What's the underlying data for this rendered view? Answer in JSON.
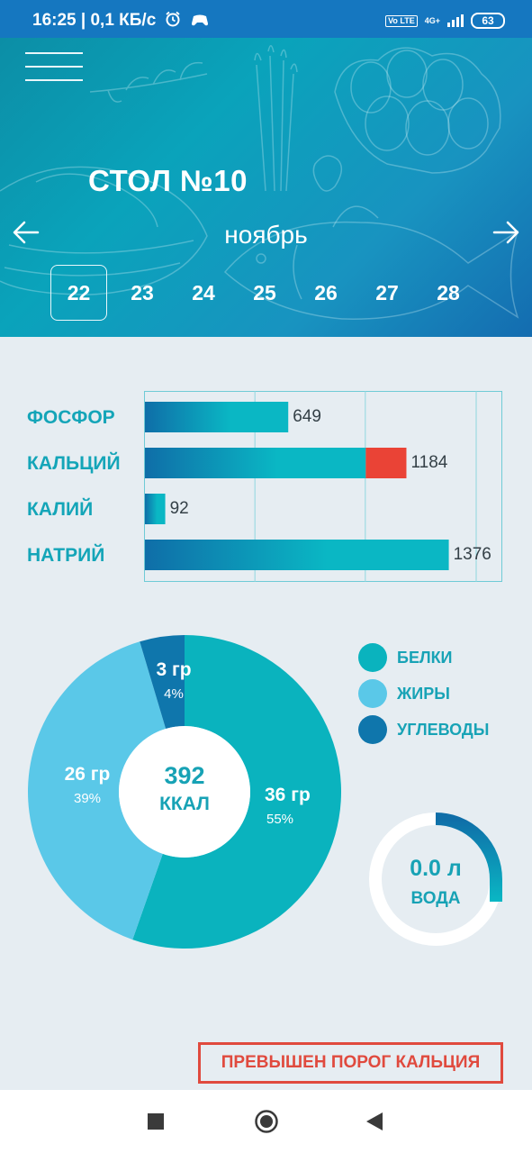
{
  "status_bar": {
    "time": "16:25",
    "speed": "0,1 КБ/с",
    "volte": "Vo LTE",
    "network": "4G+",
    "battery": "63"
  },
  "header": {
    "title": "СТОЛ №10",
    "month": "ноябрь",
    "dates": [
      "22",
      "23",
      "24",
      "25",
      "26",
      "27",
      "28"
    ],
    "selected_date": "22"
  },
  "minerals": {
    "labels": [
      "ФОСФОР",
      "КАЛЬЦИЙ",
      "КАЛИЙ",
      "НАТРИЙ"
    ],
    "values_text": [
      "649",
      "1184",
      "92",
      "1376"
    ]
  },
  "chart_data": [
    {
      "type": "bar",
      "orientation": "horizontal",
      "categories": [
        "ФОСФОР",
        "КАЛЬЦИЙ",
        "КАЛИЙ",
        "НАТРИЙ"
      ],
      "values": [
        649,
        1184,
        92,
        1376
      ],
      "threshold_exceeded": {
        "КАЛЬЦИЙ": 1000
      },
      "xlim": [
        0,
        1500
      ],
      "grid": true
    },
    {
      "type": "pie",
      "variant": "donut",
      "slices": [
        {
          "name": "БЕЛКИ",
          "value": 36,
          "label": "36 гр",
          "percent": "55%",
          "color": "#0ab3be"
        },
        {
          "name": "ЖИРЫ",
          "value": 26,
          "label": "26 гр",
          "percent": "39%",
          "color": "#5ac8e8"
        },
        {
          "name": "УГЛЕВОДЫ",
          "value": 3,
          "label": "3 гр",
          "percent": "4%",
          "color": "#0f76ac"
        }
      ],
      "center": {
        "value": "392",
        "unit": "ККАЛ"
      }
    }
  ],
  "legend": {
    "items": [
      {
        "label": "БЕЛКИ",
        "color": "#0ab3be"
      },
      {
        "label": "ЖИРЫ",
        "color": "#5ac8e8"
      },
      {
        "label": "УГЛЕВОДЫ",
        "color": "#0f76ac"
      }
    ]
  },
  "water": {
    "value": "0.0 л",
    "label": "ВОДА"
  },
  "warning": {
    "text": "ПРЕВЫШЕН ПОРОГ КАЛЬЦИЯ"
  },
  "colors": {
    "accent": "#14a5b8",
    "bar_dark": "#0f6ea8",
    "bar_light": "#0ab7c4",
    "exceeded": "#ea4336",
    "warning": "#e04a3e"
  },
  "icons": {
    "menu": "menu-icon",
    "prev": "arrow-left-icon",
    "next": "arrow-right-icon",
    "alarm": "alarm-icon",
    "gamepad": "gamepad-icon"
  }
}
